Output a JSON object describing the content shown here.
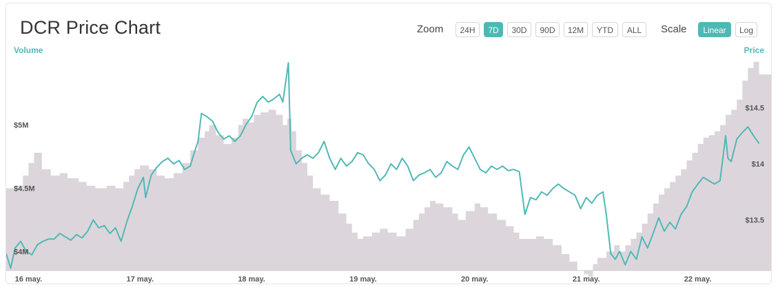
{
  "title": "DCR Price Chart",
  "controls": {
    "zoom_label": "Zoom",
    "zoom_options": [
      "24H",
      "7D",
      "30D",
      "90D",
      "12M",
      "YTD",
      "ALL"
    ],
    "zoom_active": "7D",
    "scale_label": "Scale",
    "scale_options": [
      "Linear",
      "Log"
    ],
    "scale_active": "Linear"
  },
  "colors": {
    "accent": "#4fb8b4",
    "volume": "#dcd6dc",
    "price_line": "#4fb8b4"
  },
  "chart_data": {
    "type": "line",
    "xlabel": "",
    "x_ticks": [
      "16 may.",
      "17 may.",
      "18 may.",
      "19 may.",
      "20 may.",
      "21 may.",
      "22 may."
    ],
    "left_axis": {
      "label": "Volume",
      "ticks": [
        "$4M",
        "$4.5M",
        "$5M"
      ],
      "tick_values": [
        4000000,
        4500000,
        5000000
      ],
      "range": [
        3850000,
        5580000
      ]
    },
    "right_axis": {
      "label": "Price",
      "ticks": [
        "$13.5",
        "$14",
        "$14.5"
      ],
      "tick_values": [
        13.5,
        14,
        14.5
      ],
      "range": [
        13.05,
        15.0
      ]
    },
    "x_range": [
      15.8,
      22.67
    ],
    "series": [
      {
        "axis": "right",
        "kind": "line",
        "points": [
          [
            15.8,
            13.2
          ],
          [
            15.84,
            13.07
          ],
          [
            15.88,
            13.25
          ],
          [
            15.93,
            13.31
          ],
          [
            15.98,
            13.22
          ],
          [
            16.03,
            13.19
          ],
          [
            16.08,
            13.28
          ],
          [
            16.13,
            13.31
          ],
          [
            16.18,
            13.33
          ],
          [
            16.23,
            13.33
          ],
          [
            16.28,
            13.38
          ],
          [
            16.33,
            13.35
          ],
          [
            16.38,
            13.32
          ],
          [
            16.43,
            13.37
          ],
          [
            16.48,
            13.34
          ],
          [
            16.53,
            13.4
          ],
          [
            16.58,
            13.5
          ],
          [
            16.63,
            13.43
          ],
          [
            16.68,
            13.45
          ],
          [
            16.73,
            13.38
          ],
          [
            16.78,
            13.43
          ],
          [
            16.83,
            13.31
          ],
          [
            16.88,
            13.48
          ],
          [
            16.93,
            13.62
          ],
          [
            16.98,
            13.78
          ],
          [
            17.03,
            13.88
          ],
          [
            17.05,
            13.7
          ],
          [
            17.1,
            13.9
          ],
          [
            17.15,
            13.97
          ],
          [
            17.2,
            14.02
          ],
          [
            17.25,
            14.05
          ],
          [
            17.3,
            14.0
          ],
          [
            17.35,
            14.03
          ],
          [
            17.4,
            13.95
          ],
          [
            17.45,
            13.98
          ],
          [
            17.48,
            14.08
          ],
          [
            17.52,
            14.2
          ],
          [
            17.55,
            14.45
          ],
          [
            17.6,
            14.42
          ],
          [
            17.65,
            14.38
          ],
          [
            17.7,
            14.28
          ],
          [
            17.75,
            14.22
          ],
          [
            17.8,
            14.25
          ],
          [
            17.85,
            14.2
          ],
          [
            17.9,
            14.25
          ],
          [
            17.95,
            14.35
          ],
          [
            18.0,
            14.42
          ],
          [
            18.05,
            14.55
          ],
          [
            18.1,
            14.6
          ],
          [
            18.15,
            14.55
          ],
          [
            18.2,
            14.58
          ],
          [
            18.25,
            14.62
          ],
          [
            18.28,
            14.55
          ],
          [
            18.33,
            14.9
          ],
          [
            18.35,
            14.12
          ],
          [
            18.4,
            14.0
          ],
          [
            18.45,
            14.05
          ],
          [
            18.5,
            14.08
          ],
          [
            18.55,
            14.05
          ],
          [
            18.6,
            14.1
          ],
          [
            18.65,
            14.2
          ],
          [
            18.7,
            14.05
          ],
          [
            18.75,
            13.95
          ],
          [
            18.8,
            14.05
          ],
          [
            18.85,
            13.98
          ],
          [
            18.9,
            14.02
          ],
          [
            18.95,
            14.1
          ],
          [
            19.0,
            14.08
          ],
          [
            19.05,
            14.0
          ],
          [
            19.1,
            13.95
          ],
          [
            19.15,
            13.85
          ],
          [
            19.2,
            13.9
          ],
          [
            19.25,
            14.0
          ],
          [
            19.3,
            13.95
          ],
          [
            19.35,
            14.05
          ],
          [
            19.4,
            13.98
          ],
          [
            19.45,
            13.85
          ],
          [
            19.5,
            13.9
          ],
          [
            19.55,
            13.92
          ],
          [
            19.6,
            13.95
          ],
          [
            19.65,
            13.88
          ],
          [
            19.7,
            13.92
          ],
          [
            19.75,
            14.02
          ],
          [
            19.8,
            13.98
          ],
          [
            19.85,
            13.95
          ],
          [
            19.9,
            14.08
          ],
          [
            19.95,
            14.15
          ],
          [
            20.0,
            14.05
          ],
          [
            20.05,
            13.95
          ],
          [
            20.1,
            13.92
          ],
          [
            20.15,
            13.98
          ],
          [
            20.2,
            13.95
          ],
          [
            20.25,
            13.98
          ],
          [
            20.3,
            13.94
          ],
          [
            20.35,
            13.95
          ],
          [
            20.4,
            13.93
          ],
          [
            20.45,
            13.55
          ],
          [
            20.5,
            13.7
          ],
          [
            20.55,
            13.68
          ],
          [
            20.6,
            13.75
          ],
          [
            20.65,
            13.72
          ],
          [
            20.7,
            13.78
          ],
          [
            20.75,
            13.82
          ],
          [
            20.8,
            13.78
          ],
          [
            20.85,
            13.75
          ],
          [
            20.9,
            13.72
          ],
          [
            20.95,
            13.6
          ],
          [
            21.0,
            13.7
          ],
          [
            21.05,
            13.65
          ],
          [
            21.1,
            13.72
          ],
          [
            21.15,
            13.75
          ],
          [
            21.18,
            13.55
          ],
          [
            21.22,
            13.2
          ],
          [
            21.26,
            13.15
          ],
          [
            21.3,
            13.22
          ],
          [
            21.35,
            13.1
          ],
          [
            21.4,
            13.22
          ],
          [
            21.45,
            13.15
          ],
          [
            21.5,
            13.35
          ],
          [
            21.55,
            13.25
          ],
          [
            21.6,
            13.38
          ],
          [
            21.65,
            13.52
          ],
          [
            21.7,
            13.4
          ],
          [
            21.75,
            13.48
          ],
          [
            21.8,
            13.42
          ],
          [
            21.85,
            13.55
          ],
          [
            21.9,
            13.62
          ],
          [
            21.95,
            13.75
          ],
          [
            22.0,
            13.82
          ],
          [
            22.05,
            13.88
          ],
          [
            22.1,
            13.85
          ],
          [
            22.15,
            13.82
          ],
          [
            22.2,
            13.85
          ],
          [
            22.25,
            14.25
          ],
          [
            22.27,
            14.05
          ],
          [
            22.3,
            14.02
          ],
          [
            22.35,
            14.22
          ],
          [
            22.4,
            14.28
          ],
          [
            22.45,
            14.33
          ],
          [
            22.5,
            14.25
          ],
          [
            22.55,
            14.18
          ]
        ]
      },
      {
        "axis": "left",
        "kind": "area",
        "note": "volume",
        "points": [
          [
            15.8,
            4.5
          ],
          [
            15.88,
            4.52
          ],
          [
            15.95,
            4.6
          ],
          [
            16.0,
            4.7
          ],
          [
            16.05,
            4.78
          ],
          [
            16.12,
            4.65
          ],
          [
            16.2,
            4.6
          ],
          [
            16.28,
            4.62
          ],
          [
            16.35,
            4.58
          ],
          [
            16.45,
            4.55
          ],
          [
            16.52,
            4.52
          ],
          [
            16.6,
            4.5
          ],
          [
            16.7,
            4.52
          ],
          [
            16.78,
            4.5
          ],
          [
            16.85,
            4.55
          ],
          [
            16.9,
            4.6
          ],
          [
            16.95,
            4.65
          ],
          [
            17.0,
            4.68
          ],
          [
            17.08,
            4.65
          ],
          [
            17.15,
            4.6
          ],
          [
            17.22,
            4.58
          ],
          [
            17.3,
            4.62
          ],
          [
            17.38,
            4.7
          ],
          [
            17.45,
            4.8
          ],
          [
            17.52,
            4.9
          ],
          [
            17.58,
            4.95
          ],
          [
            17.62,
            5.0
          ],
          [
            17.68,
            4.92
          ],
          [
            17.75,
            4.85
          ],
          [
            17.82,
            4.9
          ],
          [
            17.88,
            5.0
          ],
          [
            17.92,
            5.05
          ],
          [
            17.97,
            5.02
          ],
          [
            18.02,
            5.08
          ],
          [
            18.08,
            5.1
          ],
          [
            18.15,
            5.12
          ],
          [
            18.22,
            5.08
          ],
          [
            18.28,
            5.0
          ],
          [
            18.32,
            5.05
          ],
          [
            18.36,
            4.95
          ],
          [
            18.4,
            4.8
          ],
          [
            18.45,
            4.7
          ],
          [
            18.5,
            4.6
          ],
          [
            18.55,
            4.5
          ],
          [
            18.62,
            4.45
          ],
          [
            18.7,
            4.4
          ],
          [
            18.78,
            4.3
          ],
          [
            18.85,
            4.22
          ],
          [
            18.9,
            4.15
          ],
          [
            18.95,
            4.1
          ],
          [
            19.0,
            4.12
          ],
          [
            19.08,
            4.15
          ],
          [
            19.15,
            4.18
          ],
          [
            19.22,
            4.15
          ],
          [
            19.3,
            4.12
          ],
          [
            19.38,
            4.18
          ],
          [
            19.45,
            4.25
          ],
          [
            19.5,
            4.3
          ],
          [
            19.55,
            4.35
          ],
          [
            19.6,
            4.4
          ],
          [
            19.65,
            4.38
          ],
          [
            19.72,
            4.35
          ],
          [
            19.8,
            4.3
          ],
          [
            19.85,
            4.25
          ],
          [
            19.92,
            4.32
          ],
          [
            20.0,
            4.38
          ],
          [
            20.05,
            4.35
          ],
          [
            20.12,
            4.3
          ],
          [
            20.2,
            4.25
          ],
          [
            20.28,
            4.2
          ],
          [
            20.35,
            4.15
          ],
          [
            20.4,
            4.1
          ],
          [
            20.48,
            4.1
          ],
          [
            20.55,
            4.12
          ],
          [
            20.62,
            4.1
          ],
          [
            20.7,
            4.05
          ],
          [
            20.78,
            3.98
          ],
          [
            20.85,
            3.92
          ],
          [
            20.92,
            3.85
          ],
          [
            20.98,
            3.82
          ],
          [
            21.02,
            3.8
          ],
          [
            21.06,
            3.9
          ],
          [
            21.1,
            3.95
          ],
          [
            21.18,
            4.0
          ],
          [
            21.25,
            4.05
          ],
          [
            21.3,
            4.0
          ],
          [
            21.35,
            4.05
          ],
          [
            21.4,
            4.1
          ],
          [
            21.45,
            4.15
          ],
          [
            21.5,
            4.22
          ],
          [
            21.55,
            4.3
          ],
          [
            21.6,
            4.38
          ],
          [
            21.65,
            4.45
          ],
          [
            21.7,
            4.5
          ],
          [
            21.75,
            4.55
          ],
          [
            21.8,
            4.6
          ],
          [
            21.85,
            4.65
          ],
          [
            21.9,
            4.72
          ],
          [
            21.95,
            4.78
          ],
          [
            22.0,
            4.85
          ],
          [
            22.05,
            4.9
          ],
          [
            22.1,
            4.92
          ],
          [
            22.15,
            4.95
          ],
          [
            22.2,
            5.0
          ],
          [
            22.25,
            5.08
          ],
          [
            22.3,
            5.12
          ],
          [
            22.35,
            5.2
          ],
          [
            22.4,
            5.35
          ],
          [
            22.45,
            5.45
          ],
          [
            22.5,
            5.5
          ],
          [
            22.55,
            5.4
          ]
        ]
      }
    ]
  }
}
